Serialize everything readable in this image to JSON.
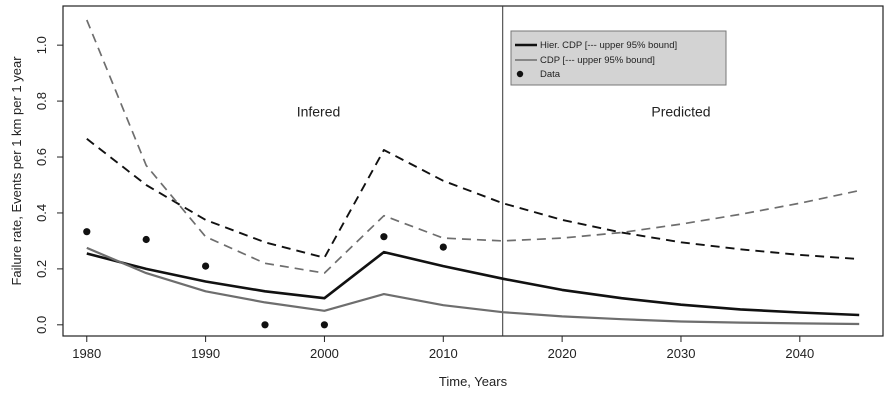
{
  "chart_data": {
    "type": "line",
    "xlabel": "Time, Years",
    "ylabel": "Failure rate, Events per 1 km per 1 year",
    "xlim": [
      1978,
      2047
    ],
    "ylim": [
      -0.04,
      1.14
    ],
    "x_ticks": [
      1980,
      1990,
      2000,
      2010,
      2020,
      2030,
      2040
    ],
    "y_ticks": [
      0.0,
      0.2,
      0.4,
      0.6,
      0.8,
      1.0
    ],
    "x_tick_labels": [
      "1980",
      "1990",
      "2000",
      "2010",
      "2020",
      "2030",
      "2040"
    ],
    "y_tick_labels": [
      "0.0",
      "0.2",
      "0.4",
      "0.6",
      "0.8",
      "1.0"
    ],
    "grid": false,
    "divider_x": 2015,
    "region_labels": [
      {
        "text": "Infered",
        "x": 1999.5,
        "y": 0.745
      },
      {
        "text": "Predicted",
        "x": 2030,
        "y": 0.745
      }
    ],
    "legend": {
      "placement": "top-center",
      "entries": [
        {
          "label": "Hier. CDP [--- upper 95% bound]",
          "marker": "thick-line"
        },
        {
          "label": "CDP [--- upper 95% bound]",
          "marker": "thin-line"
        },
        {
          "label": "Data",
          "marker": "point"
        }
      ]
    },
    "colors": {
      "hier": "#111111",
      "cdp": "#6e6e6e",
      "data": "#111111",
      "legend_bg": "#d3d3d3"
    },
    "series": [
      {
        "key": "hier",
        "style": "solid",
        "x": [
          1980,
          1985,
          1990,
          1995,
          2000,
          2005,
          2010,
          2015,
          2020,
          2025,
          2030,
          2035,
          2040,
          2045
        ],
        "y": [
          0.255,
          0.2,
          0.155,
          0.12,
          0.095,
          0.26,
          0.21,
          0.165,
          0.125,
          0.095,
          0.072,
          0.055,
          0.044,
          0.035
        ]
      },
      {
        "key": "hier_upper",
        "style": "dashed",
        "x": [
          1980,
          1985,
          1990,
          1995,
          2000,
          2005,
          2010,
          2015,
          2020,
          2025,
          2030,
          2035,
          2040,
          2045
        ],
        "y": [
          0.665,
          0.5,
          0.375,
          0.295,
          0.24,
          0.625,
          0.515,
          0.435,
          0.375,
          0.33,
          0.295,
          0.27,
          0.25,
          0.235
        ]
      },
      {
        "key": "cdp",
        "style": "solid",
        "x": [
          1980,
          1985,
          1990,
          1995,
          2000,
          2005,
          2010,
          2015,
          2020,
          2025,
          2030,
          2035,
          2040,
          2045
        ],
        "y": [
          0.275,
          0.185,
          0.12,
          0.08,
          0.05,
          0.11,
          0.07,
          0.045,
          0.03,
          0.02,
          0.012,
          0.008,
          0.005,
          0.003
        ]
      },
      {
        "key": "cdp_upper",
        "style": "dashed",
        "x": [
          1980,
          1985,
          1990,
          1995,
          2000,
          2005,
          2010,
          2015,
          2020,
          2025,
          2030,
          2035,
          2040,
          2045
        ],
        "y": [
          1.09,
          0.57,
          0.315,
          0.22,
          0.185,
          0.39,
          0.31,
          0.3,
          0.31,
          0.33,
          0.36,
          0.395,
          0.435,
          0.48
        ]
      },
      {
        "key": "data",
        "style": "points",
        "x": [
          1980,
          1985,
          1990,
          1995,
          2000,
          2005,
          2010
        ],
        "y": [
          0.333,
          0.305,
          0.21,
          0.0,
          0.0,
          0.315,
          0.278
        ]
      }
    ]
  }
}
